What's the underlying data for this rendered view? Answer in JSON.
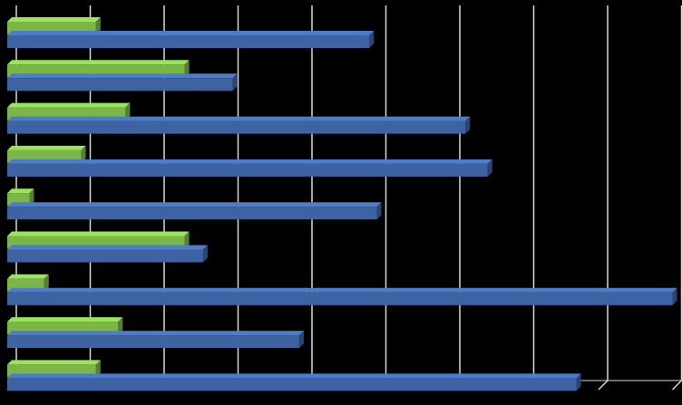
{
  "chart_data": {
    "type": "bar",
    "orientation": "horizontal",
    "style": "3d",
    "grid": true,
    "legend": "none",
    "xlim": [
      0,
      9
    ],
    "categories": [
      "",
      "",
      "",
      "",
      "",
      "",
      "",
      "",
      ""
    ],
    "series": [
      {
        "color": "#3d63a3",
        "values": [
          4.9,
          3.05,
          6.2,
          6.5,
          5.0,
          2.65,
          9.0,
          3.95,
          7.7
        ]
      },
      {
        "color": "#7ab648",
        "values": [
          1.2,
          2.4,
          1.6,
          1.0,
          0.3,
          2.4,
          0.5,
          1.5,
          1.2
        ]
      }
    ]
  }
}
